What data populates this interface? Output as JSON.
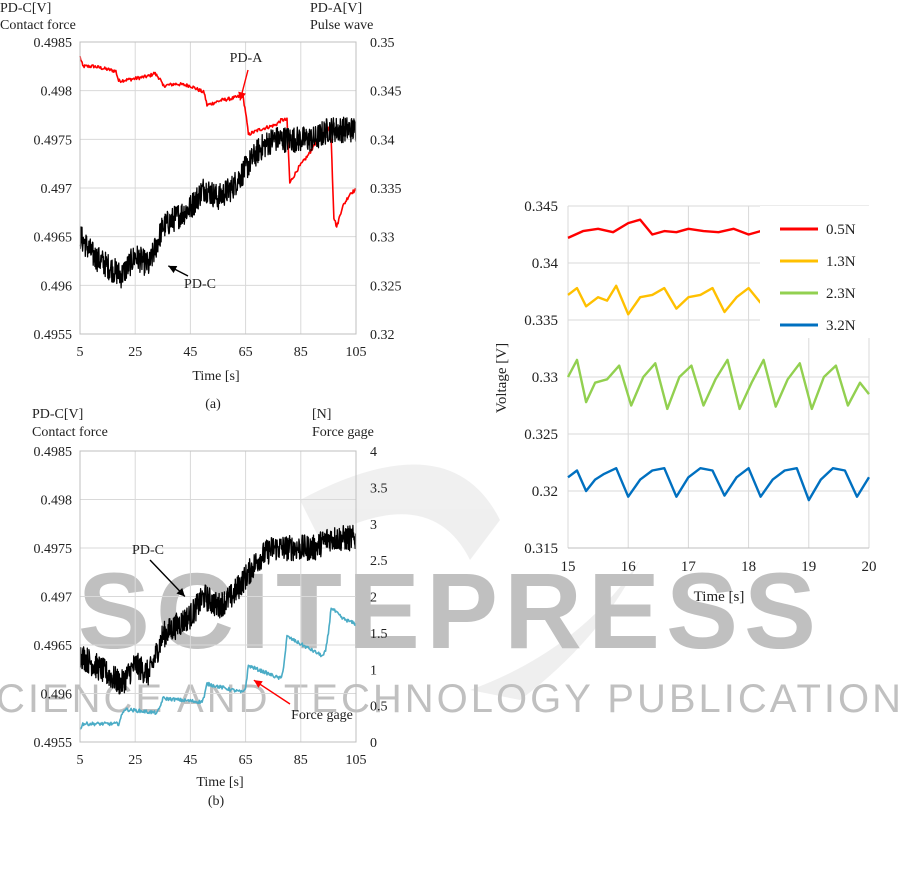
{
  "watermark": {
    "brand": "SCITEPRESS",
    "tagline": "SCIENCE AND TECHNOLOGY PUBLICATIONS"
  },
  "chart_data": [
    {
      "id": "a",
      "type": "line",
      "caption": "(a)",
      "left_axis_label": [
        "PD-C[V]",
        "Contact force"
      ],
      "right_axis_label": [
        "PD-A[V]",
        "Pulse wave"
      ],
      "xlabel": "Time [s]",
      "xlim": [
        5,
        105
      ],
      "x_ticks": [
        5,
        25,
        45,
        65,
        85,
        105
      ],
      "y_left_lim": [
        0.4955,
        0.4985
      ],
      "y_left_ticks": [
        "0.4955",
        "0.496",
        "0.4965",
        "0.497",
        "0.4975",
        "0.498",
        "0.4985"
      ],
      "y_right_lim": [
        0.32,
        0.35
      ],
      "y_right_ticks": [
        "0.32",
        "0.325",
        "0.33",
        "0.335",
        "0.34",
        "0.345",
        "0.35"
      ],
      "grid": true,
      "annotations": [
        {
          "text": "PD-A",
          "target_x": 63,
          "target_y_right": 0.344
        },
        {
          "text": "PD-C",
          "target_x": 37,
          "target_y_left": 0.4962
        }
      ],
      "series": [
        {
          "name": "PD-A",
          "axis": "right",
          "color": "#ff0000",
          "x": [
            5,
            6,
            10,
            18,
            19,
            24,
            30,
            32,
            34,
            35,
            40,
            45,
            50,
            51,
            56,
            60,
            64,
            65,
            66,
            70,
            76,
            78,
            80,
            81,
            84,
            88,
            90,
            93,
            95,
            96,
            97,
            98,
            100,
            102,
            103,
            105
          ],
          "y": [
            0.3485,
            0.3475,
            0.3475,
            0.347,
            0.346,
            0.3462,
            0.3465,
            0.3468,
            0.3462,
            0.3455,
            0.3457,
            0.3455,
            0.3448,
            0.3435,
            0.344,
            0.3442,
            0.3445,
            0.3428,
            0.3405,
            0.341,
            0.3415,
            0.342,
            0.342,
            0.3355,
            0.337,
            0.3385,
            0.3395,
            0.3405,
            0.3412,
            0.34,
            0.332,
            0.331,
            0.333,
            0.334,
            0.3345,
            0.3348
          ]
        },
        {
          "name": "PD-C",
          "axis": "left",
          "color": "#000000",
          "x": [
            5,
            10,
            15,
            20,
            25,
            30,
            35,
            40,
            45,
            50,
            55,
            60,
            65,
            70,
            75,
            80,
            85,
            90,
            95,
            100,
            105
          ],
          "y": [
            0.4965,
            0.4963,
            0.4962,
            0.4961,
            0.4963,
            0.4962,
            0.4966,
            0.4967,
            0.4968,
            0.497,
            0.4969,
            0.497,
            0.4972,
            0.4974,
            0.4975,
            0.4975,
            0.4975,
            0.4975,
            0.4976,
            0.4976,
            0.4976
          ]
        }
      ]
    },
    {
      "id": "b",
      "type": "line",
      "caption": "(b)",
      "left_axis_label": [
        "PD-C[V]",
        "Contact force"
      ],
      "right_axis_label": [
        "[N]",
        "Force gage"
      ],
      "xlabel": "Time [s]",
      "xlim": [
        5,
        105
      ],
      "x_ticks": [
        5,
        25,
        45,
        65,
        85,
        105
      ],
      "y_left_lim": [
        0.4955,
        0.4985
      ],
      "y_left_ticks": [
        "0.4955",
        "0.496",
        "0.4965",
        "0.497",
        "0.4975",
        "0.498",
        "0.4985"
      ],
      "y_right_lim": [
        0,
        4
      ],
      "y_right_ticks": [
        "0",
        "0.5",
        "1",
        "1.5",
        "2",
        "2.5",
        "3",
        "3.5",
        "4"
      ],
      "grid": true,
      "annotations": [
        {
          "text": "PD-C",
          "target_x": 43,
          "target_y_left": 0.497
        },
        {
          "text": "Force gage",
          "target_x": 68,
          "target_y_right": 0.85
        }
      ],
      "series": [
        {
          "name": "PD-C",
          "axis": "left",
          "color": "#000000",
          "x": [
            5,
            10,
            15,
            20,
            25,
            30,
            35,
            40,
            45,
            50,
            55,
            60,
            65,
            70,
            75,
            80,
            85,
            90,
            95,
            100,
            105
          ],
          "y": [
            0.4964,
            0.4963,
            0.4962,
            0.4961,
            0.4963,
            0.4962,
            0.4966,
            0.4967,
            0.4968,
            0.497,
            0.4969,
            0.497,
            0.4972,
            0.4974,
            0.4975,
            0.4975,
            0.4975,
            0.4975,
            0.4976,
            0.4976,
            0.4976
          ]
        },
        {
          "name": "Force gage",
          "axis": "right",
          "color": "#4bacc6",
          "x": [
            5,
            6,
            19,
            20,
            21,
            33,
            34,
            35,
            49,
            50,
            51,
            64,
            65,
            66,
            77,
            78,
            79,
            80,
            93,
            94,
            95,
            96,
            100,
            105
          ],
          "y": [
            0.18,
            0.25,
            0.25,
            0.35,
            0.45,
            0.4,
            0.48,
            0.6,
            0.55,
            0.62,
            0.8,
            0.68,
            0.75,
            1.05,
            0.88,
            0.88,
            1.1,
            1.45,
            1.18,
            1.25,
            1.5,
            1.85,
            1.7,
            1.62
          ]
        }
      ]
    },
    {
      "id": "c",
      "type": "line",
      "ylabel": "Voltage [V]",
      "xlabel": "Time [s]",
      "xlim": [
        15,
        20
      ],
      "x_ticks": [
        15,
        16,
        17,
        18,
        19,
        20
      ],
      "ylim": [
        0.315,
        0.345
      ],
      "y_ticks": [
        "0.315",
        "0.32",
        "0.325",
        "0.33",
        "0.335",
        "0.34",
        "0.345"
      ],
      "grid": true,
      "legend": "top-right",
      "series": [
        {
          "name": "0.5N",
          "color": "#ff0000",
          "base": 0.3428,
          "wave_amp": 0.0005,
          "x": [
            15,
            15.25,
            15.5,
            15.75,
            16,
            16.2,
            16.4,
            16.6,
            16.8,
            17,
            17.25,
            17.5,
            17.75,
            18,
            18.2
          ],
          "y": [
            0.3422,
            0.3428,
            0.343,
            0.3427,
            0.3435,
            0.3438,
            0.3425,
            0.3428,
            0.3427,
            0.343,
            0.3428,
            0.3427,
            0.343,
            0.3425,
            0.3428
          ]
        },
        {
          "name": "1.3N",
          "color": "#ffc000",
          "x": [
            15,
            15.15,
            15.3,
            15.5,
            15.65,
            15.8,
            16,
            16.2,
            16.4,
            16.6,
            16.8,
            17,
            17.2,
            17.4,
            17.6,
            17.8,
            18,
            18.2
          ],
          "y": [
            0.3372,
            0.3378,
            0.3362,
            0.337,
            0.3367,
            0.338,
            0.3355,
            0.337,
            0.3372,
            0.3378,
            0.336,
            0.337,
            0.3372,
            0.3378,
            0.3357,
            0.337,
            0.3378,
            0.3365
          ]
        },
        {
          "name": "2.3N",
          "color": "#92d050",
          "x": [
            15,
            15.15,
            15.3,
            15.45,
            15.65,
            15.85,
            16.05,
            16.25,
            16.45,
            16.65,
            16.85,
            17.05,
            17.25,
            17.45,
            17.65,
            17.85,
            18.05,
            18.25,
            18.45,
            18.65,
            18.85,
            19.05,
            19.25,
            19.45,
            19.65,
            19.85,
            20
          ],
          "y": [
            0.33,
            0.3315,
            0.3278,
            0.3295,
            0.3298,
            0.331,
            0.3275,
            0.33,
            0.3312,
            0.3272,
            0.33,
            0.331,
            0.3275,
            0.3298,
            0.3315,
            0.3272,
            0.3295,
            0.3315,
            0.3274,
            0.3298,
            0.3312,
            0.3272,
            0.33,
            0.331,
            0.3275,
            0.3295,
            0.3285
          ]
        },
        {
          "name": "3.2N",
          "color": "#0070c0",
          "x": [
            15,
            15.15,
            15.3,
            15.45,
            15.6,
            15.8,
            16,
            16.2,
            16.4,
            16.6,
            16.8,
            17,
            17.2,
            17.4,
            17.6,
            17.8,
            18,
            18.2,
            18.4,
            18.6,
            18.8,
            19,
            19.2,
            19.4,
            19.6,
            19.8,
            20
          ],
          "y": [
            0.3212,
            0.3218,
            0.32,
            0.321,
            0.3215,
            0.322,
            0.3195,
            0.321,
            0.3218,
            0.322,
            0.3195,
            0.3212,
            0.322,
            0.3218,
            0.3196,
            0.3212,
            0.322,
            0.3195,
            0.321,
            0.3218,
            0.322,
            0.3192,
            0.321,
            0.322,
            0.3218,
            0.3195,
            0.3212
          ]
        }
      ]
    }
  ]
}
